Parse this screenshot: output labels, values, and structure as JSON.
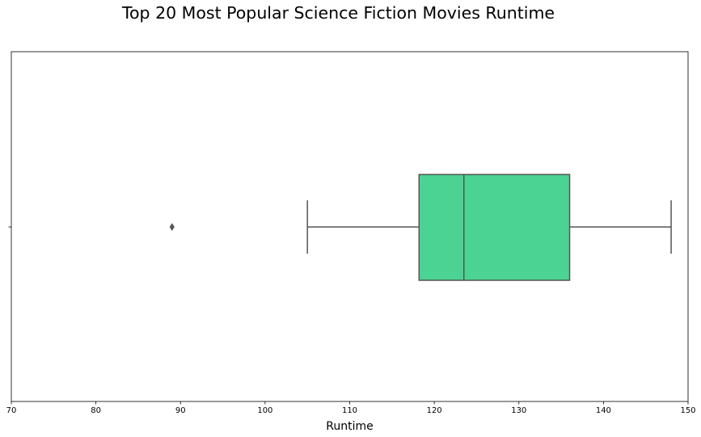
{
  "chart_data": {
    "type": "box",
    "title": "Top 20 Most Popular Science Fiction Movies Runtime",
    "xlabel": "Runtime",
    "ylabel": "",
    "orientation": "horizontal",
    "xlim": [
      70,
      150
    ],
    "xticks": [
      70,
      80,
      90,
      100,
      110,
      120,
      130,
      140,
      150
    ],
    "grid": false,
    "box": {
      "whisker_low": 105,
      "q1": 118.2,
      "median": 123.5,
      "q3": 136,
      "whisker_high": 148,
      "outliers": [
        89
      ]
    },
    "colors": {
      "box_fill": "#4bd393",
      "line": "#555555",
      "axes": "#000000"
    }
  }
}
